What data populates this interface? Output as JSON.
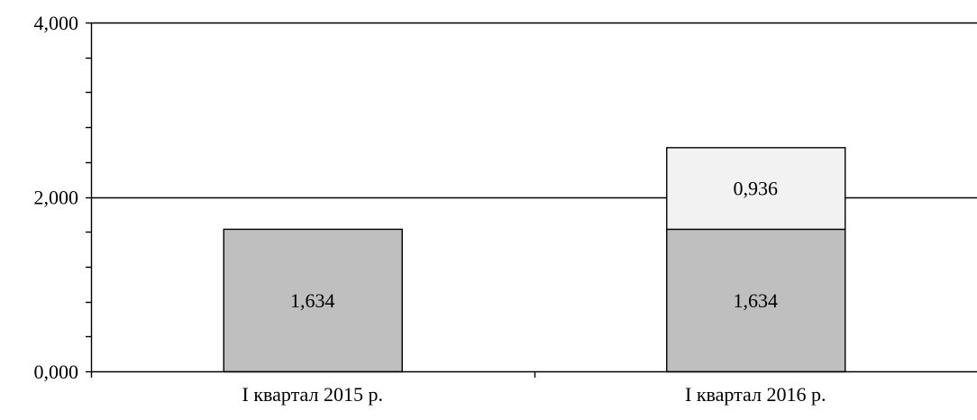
{
  "chart_data": {
    "type": "bar",
    "stacked": true,
    "categories": [
      "I квартал 2015 р.",
      "I квартал 2016 р."
    ],
    "series": [
      {
        "values": [
          1.634,
          1.634
        ],
        "labels": [
          "1,634",
          "1,634"
        ],
        "color": "#bfbfbf"
      },
      {
        "values": [
          0,
          0.936
        ],
        "labels": [
          "",
          "0,936"
        ],
        "color": "#f2f2f2"
      }
    ],
    "ylim": [
      0,
      4
    ],
    "yticks": [
      0,
      2,
      4
    ],
    "ytick_labels": [
      "0,000",
      "2,000",
      "4,000"
    ],
    "minor_ticks_per_major": 5,
    "grid": true,
    "legend": "none",
    "title": "",
    "xlabel": "",
    "ylabel": ""
  }
}
